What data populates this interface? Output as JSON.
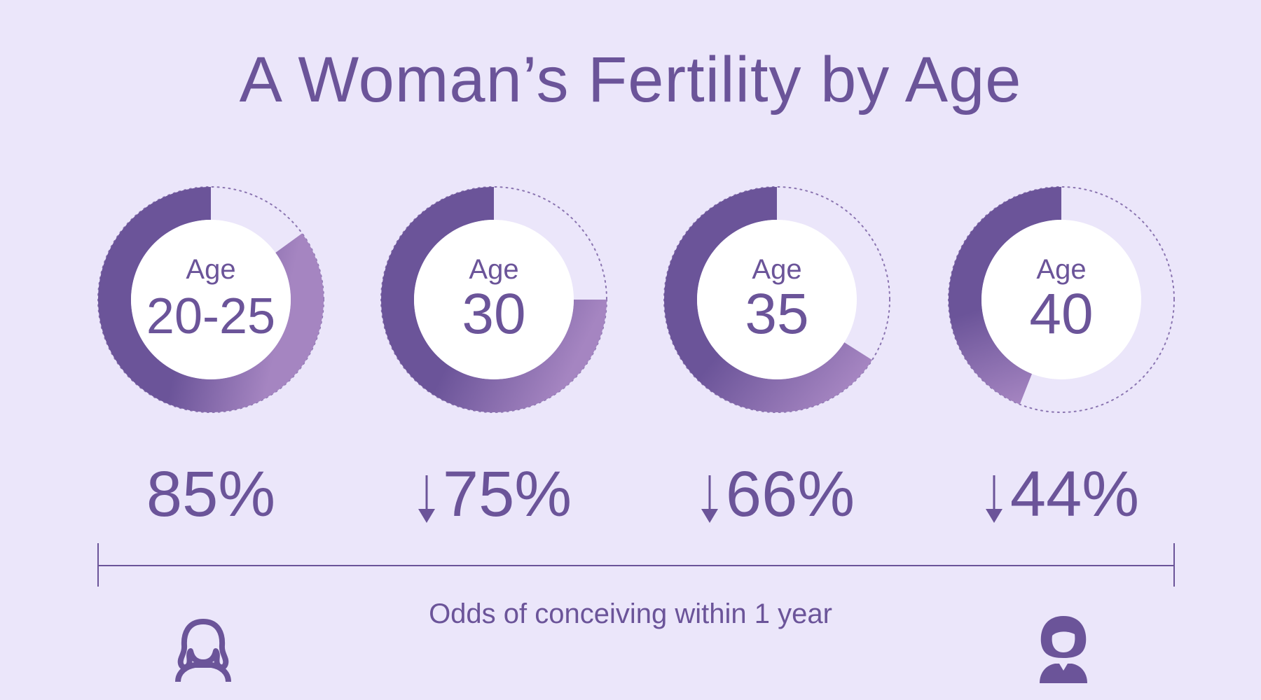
{
  "title": "A Woman’s Fertility by Age",
  "caption": "Odds of conceiving within 1 year",
  "colors": {
    "background": "#ebe6fa",
    "primary": "#6b5499",
    "light": "#a585c1",
    "ring_center": "#ffffff"
  },
  "icons": {
    "left": "young-woman-outline-icon",
    "right": "older-woman-filled-icon"
  },
  "chart_data": {
    "type": "donut",
    "title": "A Woman’s Fertility by Age",
    "categories": [
      "20-25",
      "30",
      "35",
      "40"
    ],
    "series": [
      {
        "name": "Odds of conceiving within 1 year",
        "values": [
          85,
          75,
          66,
          44
        ]
      }
    ],
    "unit": "%",
    "center_prefix": "Age",
    "trend_arrows": [
      false,
      true,
      true,
      true
    ]
  },
  "rings": [
    {
      "prefix": "Age",
      "age": "20-25",
      "percent_label": "85%",
      "value": 85,
      "arrow": false
    },
    {
      "prefix": "Age",
      "age": "30",
      "percent_label": "75%",
      "value": 75,
      "arrow": true
    },
    {
      "prefix": "Age",
      "age": "35",
      "percent_label": "66%",
      "value": 66,
      "arrow": true
    },
    {
      "prefix": "Age",
      "age": "40",
      "percent_label": "44%",
      "value": 44,
      "arrow": true
    }
  ]
}
